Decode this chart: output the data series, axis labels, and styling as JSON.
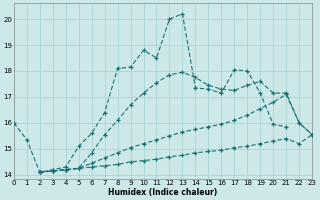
{
  "bg_color": "#cce8e8",
  "grid_color": "#aad4d4",
  "line_color": "#1a7070",
  "xlabel": "Humidex (Indice chaleur)",
  "xlim": [
    0,
    23
  ],
  "ylim": [
    13.85,
    20.6
  ],
  "yticks": [
    14,
    15,
    16,
    17,
    18,
    19,
    20
  ],
  "xticks": [
    0,
    1,
    2,
    3,
    4,
    5,
    6,
    7,
    8,
    9,
    10,
    11,
    12,
    13,
    14,
    15,
    16,
    17,
    18,
    19,
    20,
    21,
    22,
    23
  ],
  "series": [
    {
      "x": [
        0,
        1,
        2,
        3,
        4,
        5,
        6,
        7,
        8,
        9,
        10,
        11,
        12,
        13,
        14,
        15,
        16,
        17,
        18,
        19,
        20,
        21
      ],
      "y": [
        16.0,
        15.35,
        14.1,
        14.2,
        14.3,
        15.1,
        15.6,
        16.4,
        18.1,
        18.15,
        18.8,
        18.5,
        20.0,
        20.2,
        17.35,
        17.3,
        17.15,
        18.05,
        18.0,
        17.15,
        15.95,
        15.85
      ]
    },
    {
      "x": [
        2,
        3,
        4,
        5,
        6,
        7,
        8,
        9,
        10,
        11,
        12,
        13,
        14,
        15,
        16,
        17,
        18,
        19,
        20,
        21,
        22,
        23
      ],
      "y": [
        14.1,
        14.15,
        14.2,
        14.25,
        14.85,
        15.55,
        16.1,
        16.7,
        17.15,
        17.55,
        17.85,
        17.95,
        17.75,
        17.45,
        17.3,
        17.25,
        17.45,
        17.6,
        17.15,
        17.15,
        16.0,
        15.55
      ]
    },
    {
      "x": [
        2,
        3,
        4,
        5,
        6,
        7,
        8,
        9,
        10,
        11,
        12,
        13,
        14,
        15,
        16,
        17,
        18,
        19,
        20,
        21,
        22,
        23
      ],
      "y": [
        14.1,
        14.15,
        14.2,
        14.25,
        14.45,
        14.65,
        14.85,
        15.05,
        15.2,
        15.35,
        15.5,
        15.65,
        15.75,
        15.85,
        15.95,
        16.1,
        16.3,
        16.55,
        16.8,
        17.1,
        16.0,
        15.55
      ]
    },
    {
      "x": [
        2,
        3,
        4,
        5,
        6,
        7,
        8,
        9,
        10,
        11,
        12,
        13,
        14,
        15,
        16,
        17,
        18,
        19,
        20,
        21,
        22,
        23
      ],
      "y": [
        14.1,
        14.15,
        14.2,
        14.25,
        14.3,
        14.35,
        14.4,
        14.5,
        14.55,
        14.6,
        14.7,
        14.75,
        14.85,
        14.9,
        14.95,
        15.05,
        15.1,
        15.2,
        15.3,
        15.4,
        15.2,
        15.55
      ]
    }
  ]
}
